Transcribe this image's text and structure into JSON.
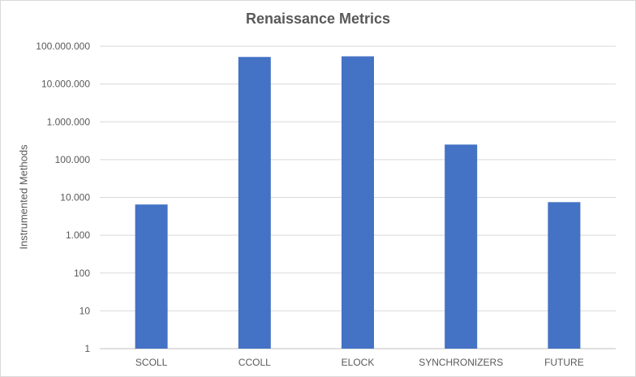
{
  "chart_data": {
    "type": "bar",
    "title": "Renaissance Metrics",
    "xlabel": "",
    "ylabel": "Instrumented Methods",
    "y_scale": "log",
    "ylim": [
      1,
      100000000
    ],
    "y_ticks": [
      1,
      10,
      100,
      1000,
      10000,
      100000,
      1000000,
      10000000,
      100000000
    ],
    "y_tick_labels": [
      "1",
      "10",
      "100",
      "1.000",
      "10.000",
      "100.000",
      "1.000.000",
      "10.000.000",
      "100.000.000"
    ],
    "categories": [
      "SCOLL",
      "CCOLL",
      "ELOCK",
      "SYNCHRONIZERS",
      "FUTURE"
    ],
    "values": [
      6500,
      52000000,
      54000000,
      250000,
      7500
    ],
    "grid": true,
    "legend": "none",
    "bar_color": "#4472c4"
  }
}
